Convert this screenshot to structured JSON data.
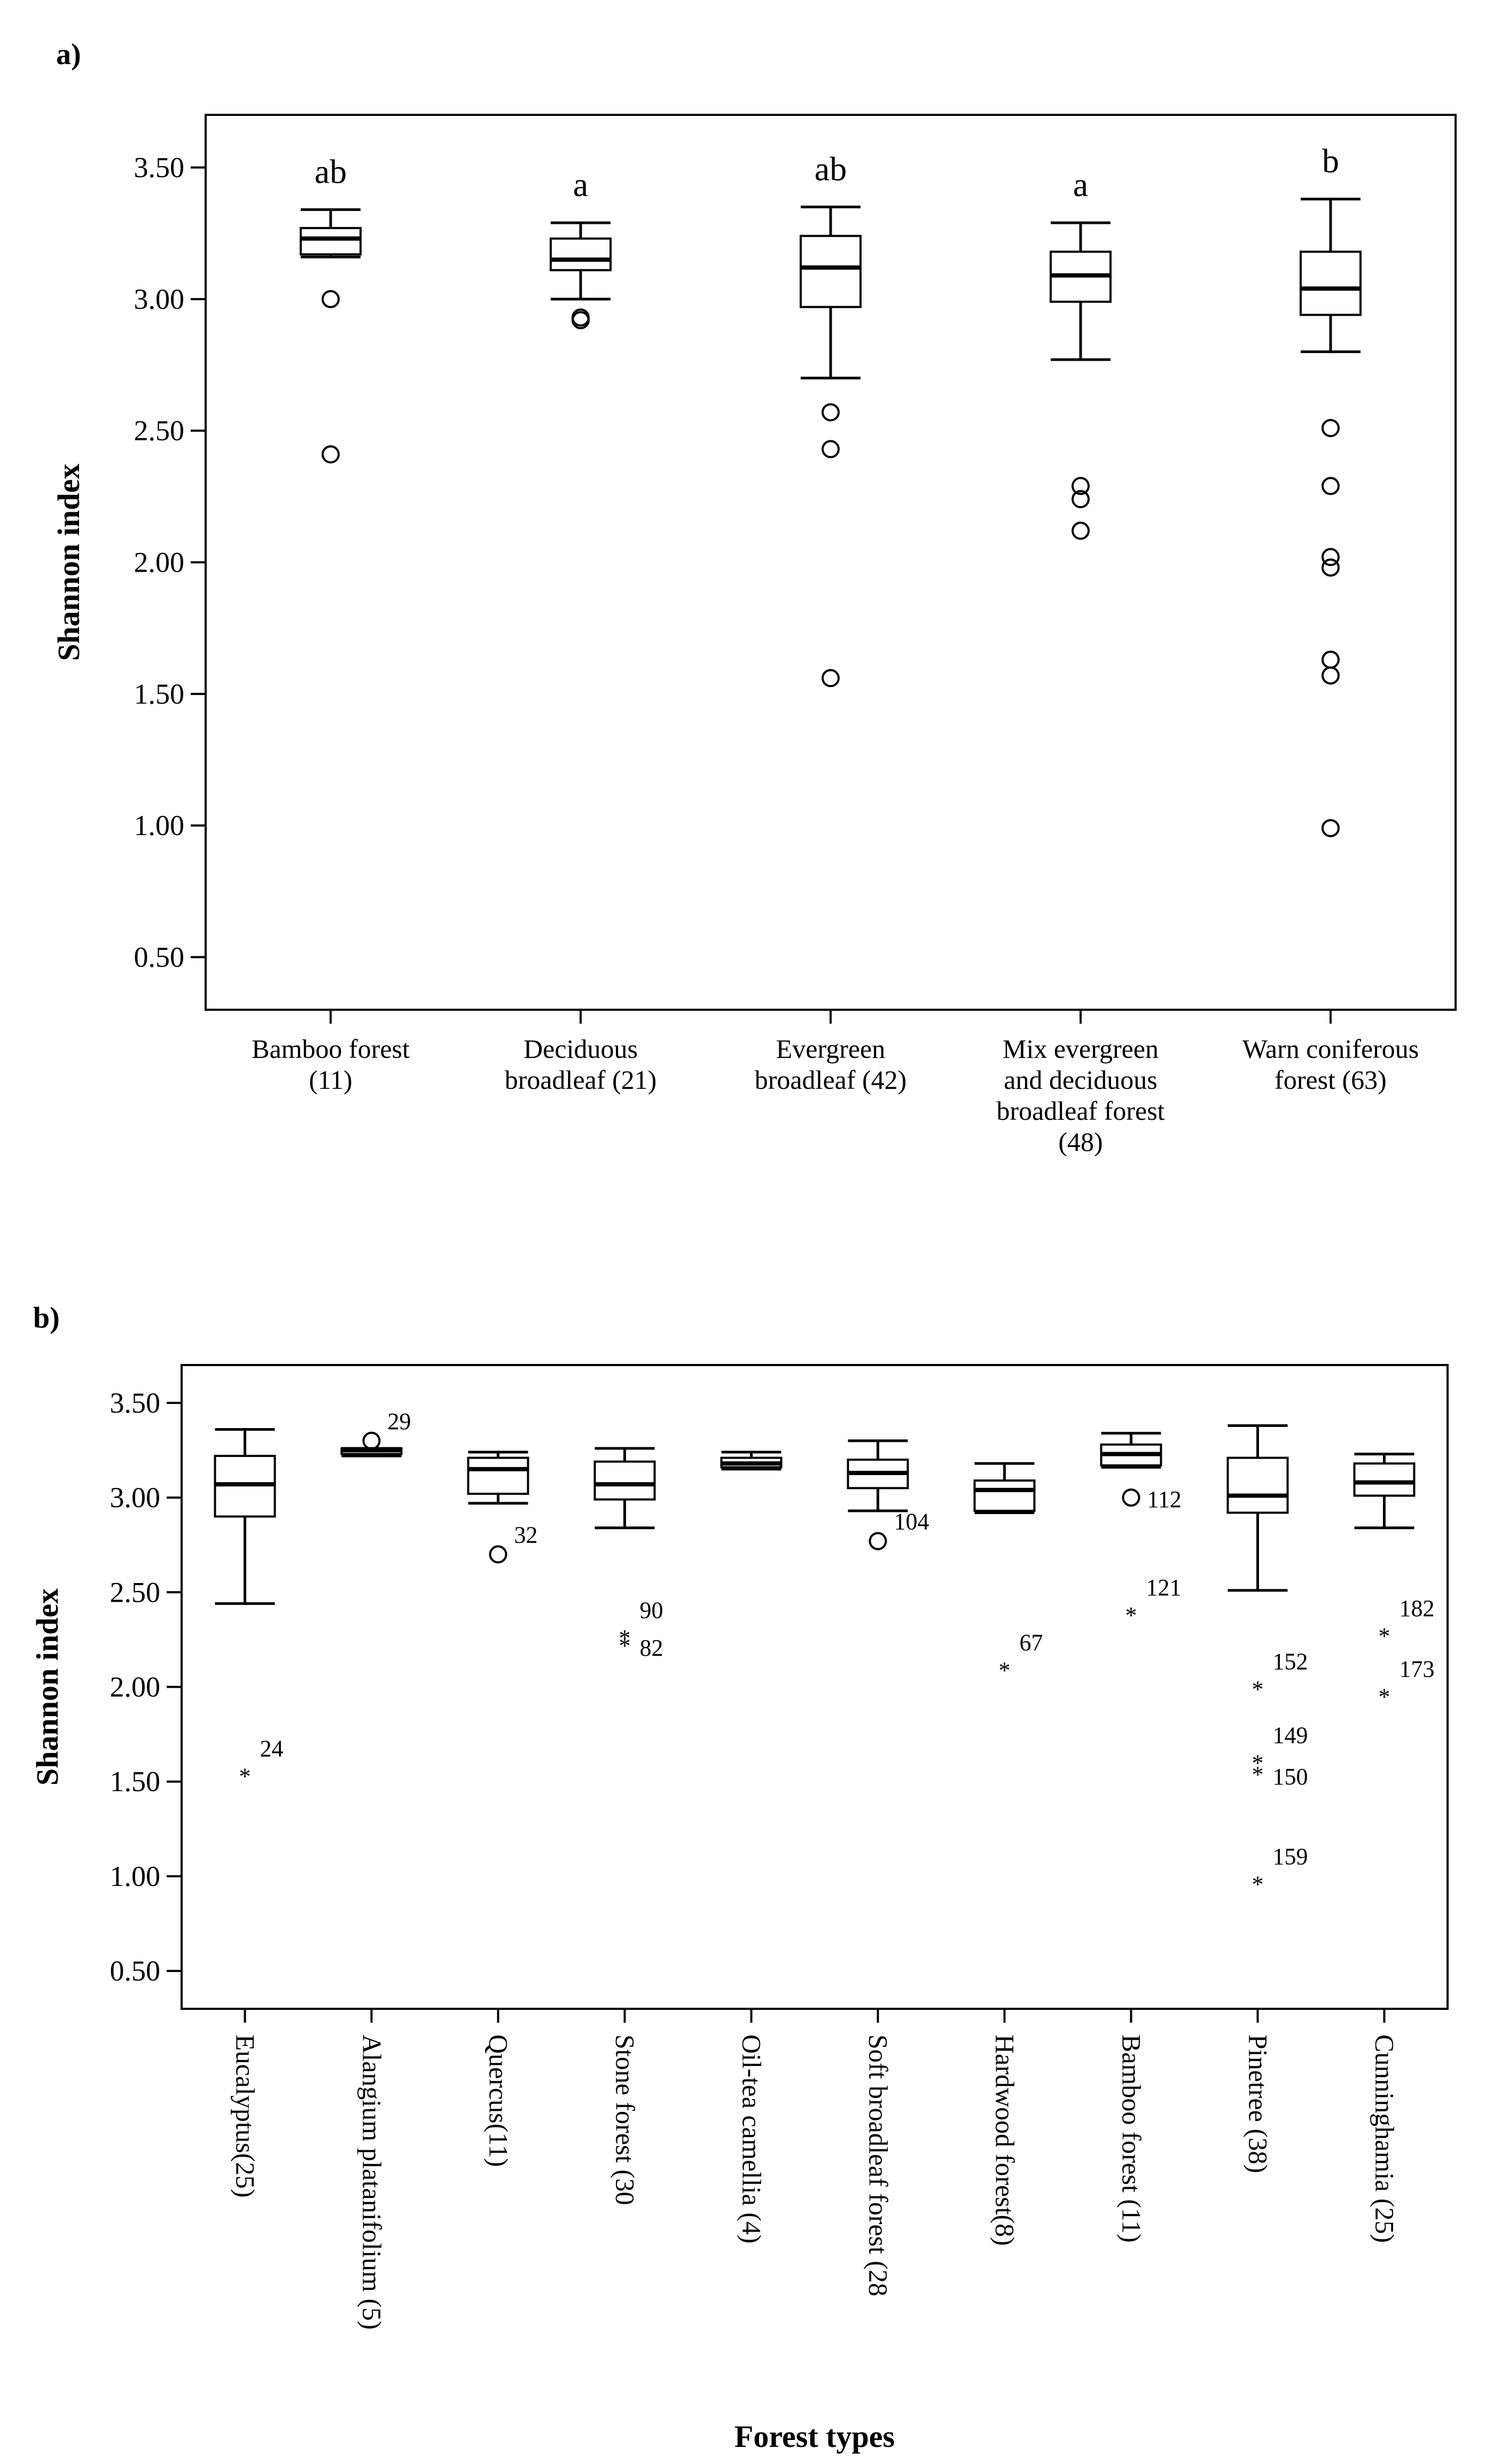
{
  "chart_data": [
    {
      "type": "box",
      "panel_label": "a)",
      "ylabel": "Shannon index",
      "xlabel": "",
      "ylim": [
        0.3,
        3.7
      ],
      "yticks": [
        "3.50",
        "3.00",
        "2.50",
        "2.00",
        "1.50",
        "1.00",
        "0.50"
      ],
      "ytick_values": [
        3.5,
        3.0,
        2.5,
        2.0,
        1.5,
        1.0,
        0.5
      ],
      "categories": [
        {
          "label_lines": [
            "Bamboo forest",
            "(11)"
          ],
          "sig": "ab",
          "min": 3.16,
          "q1": 3.17,
          "median": 3.23,
          "q3": 3.27,
          "max": 3.34,
          "outliers": [
            3.0,
            2.41
          ],
          "outlier_labels": []
        },
        {
          "label_lines": [
            "Deciduous",
            "broadleaf (21)"
          ],
          "sig": "a",
          "min": 3.0,
          "q1": 3.11,
          "median": 3.15,
          "q3": 3.23,
          "max": 3.29,
          "outliers": [
            2.93,
            2.92
          ],
          "outlier_labels": []
        },
        {
          "label_lines": [
            "Evergreen",
            "broadleaf (42)"
          ],
          "sig": "ab",
          "min": 2.7,
          "q1": 2.97,
          "median": 3.12,
          "q3": 3.24,
          "max": 3.35,
          "outliers": [
            2.57,
            2.43,
            1.56
          ],
          "outlier_labels": []
        },
        {
          "label_lines": [
            "Mix evergreen",
            "and deciduous",
            "broadleaf forest",
            "(48)"
          ],
          "sig": "a",
          "min": 2.77,
          "q1": 2.99,
          "median": 3.09,
          "q3": 3.18,
          "max": 3.29,
          "outliers": [
            2.29,
            2.24,
            2.12
          ],
          "outlier_labels": []
        },
        {
          "label_lines": [
            "Warn coniferous",
            "forest (63)"
          ],
          "sig": "b",
          "min": 2.8,
          "q1": 2.94,
          "median": 3.04,
          "q3": 3.18,
          "max": 3.38,
          "outliers": [
            2.51,
            2.29,
            2.02,
            1.98,
            1.63,
            1.57,
            0.99
          ],
          "outlier_labels": []
        }
      ]
    },
    {
      "type": "box",
      "panel_label": "b)",
      "ylabel": "Shannon index",
      "xlabel": "Forest types",
      "ylim": [
        0.3,
        3.7
      ],
      "yticks": [
        "3.50",
        "3.00",
        "2.50",
        "2.00",
        "1.50",
        "1.00",
        "0.50"
      ],
      "ytick_values": [
        3.5,
        3.0,
        2.5,
        2.0,
        1.5,
        1.0,
        0.5
      ],
      "categories": [
        {
          "label": "Eucalyptus(25)",
          "min": 2.44,
          "q1": 2.9,
          "median": 3.07,
          "q3": 3.22,
          "max": 3.36,
          "outliers": [],
          "extremes": [
            1.56
          ],
          "outlier_labels": [],
          "extreme_labels": [
            "24"
          ]
        },
        {
          "label": "Alangium platanifolium (5)",
          "min": 3.22,
          "q1": 3.23,
          "median": 3.25,
          "q3": 3.26,
          "max": 3.26,
          "outliers": [
            3.3
          ],
          "extremes": [],
          "outlier_labels": [
            "29"
          ],
          "extreme_labels": []
        },
        {
          "label": "Quercus(11)",
          "min": 2.97,
          "q1": 3.02,
          "median": 3.15,
          "q3": 3.21,
          "max": 3.24,
          "outliers": [
            2.7
          ],
          "extremes": [],
          "outlier_labels": [
            "32"
          ],
          "extreme_labels": []
        },
        {
          "label": "Stone forest (30",
          "min": 2.84,
          "q1": 2.99,
          "median": 3.07,
          "q3": 3.19,
          "max": 3.26,
          "outliers": [],
          "extremes": [
            2.29,
            2.25
          ],
          "outlier_labels": [],
          "extreme_labels": [
            "90",
            "82"
          ]
        },
        {
          "label": "Oil-tea camellia (4)",
          "min": 3.15,
          "q1": 3.16,
          "median": 3.18,
          "q3": 3.21,
          "max": 3.24,
          "outliers": [],
          "extremes": [],
          "outlier_labels": [],
          "extreme_labels": []
        },
        {
          "label": "Soft broadleaf forest (28",
          "min": 2.93,
          "q1": 3.05,
          "median": 3.13,
          "q3": 3.2,
          "max": 3.3,
          "outliers": [
            2.77
          ],
          "extremes": [],
          "outlier_labels": [
            "104"
          ],
          "extreme_labels": []
        },
        {
          "label": "Hardwood forest(8)",
          "min": 2.92,
          "q1": 2.93,
          "median": 3.04,
          "q3": 3.09,
          "max": 3.18,
          "outliers": [],
          "extremes": [
            2.12
          ],
          "outlier_labels": [],
          "extreme_labels": [
            "67"
          ]
        },
        {
          "label": "Bamboo forest (11)",
          "min": 3.16,
          "q1": 3.17,
          "median": 3.23,
          "q3": 3.28,
          "max": 3.34,
          "outliers": [
            3.0
          ],
          "extremes": [
            2.41
          ],
          "outlier_labels": [
            "112"
          ],
          "extreme_labels": [
            "121"
          ]
        },
        {
          "label": "Pinetree (38)",
          "min": 2.51,
          "q1": 2.92,
          "median": 3.01,
          "q3": 3.21,
          "max": 3.38,
          "outliers": [],
          "extremes": [
            2.02,
            1.63,
            1.57,
            0.99
          ],
          "outlier_labels": [],
          "extreme_labels": [
            "152",
            "149",
            "150",
            "159"
          ]
        },
        {
          "label": "Cunninghamia (25)",
          "min": 2.84,
          "q1": 3.01,
          "median": 3.08,
          "q3": 3.18,
          "max": 3.23,
          "outliers": [],
          "extremes": [
            2.3,
            1.98
          ],
          "outlier_labels": [],
          "extreme_labels": [
            "182",
            "173"
          ]
        }
      ]
    }
  ]
}
